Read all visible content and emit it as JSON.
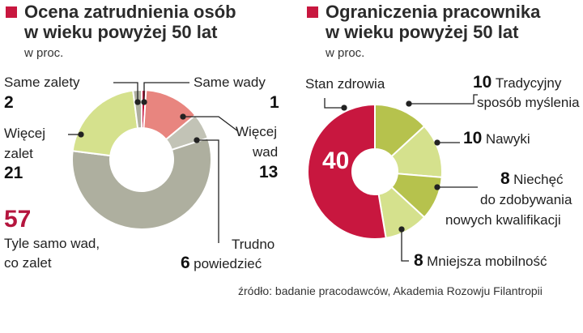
{
  "accent_color": "#c8173f",
  "source": "źródło: badanie pracodawców, Akademia Rozowju Filantropii",
  "chart_data": [
    {
      "type": "pie",
      "title_line1": "Ocena zatrudnienia osób",
      "title_line2": "w wieku powyżej 50 lat",
      "unit": "w proc.",
      "slices": [
        {
          "label": "Same wady",
          "value": 1,
          "color": "#c8173f"
        },
        {
          "label_l1": "Więcej",
          "label_l2": "wad",
          "value": 13,
          "color": "#e8857f"
        },
        {
          "label_l1": "Trudno",
          "label_l2": "powiedzieć",
          "value": 6,
          "color": "#c2c3b6"
        },
        {
          "label_l1": "Tyle samo wad,",
          "label_l2": "co zalet",
          "value": 57,
          "color": "#aeaf9f"
        },
        {
          "label_l1": "Więcej",
          "label_l2": "zalet",
          "value": 21,
          "color": "#d5e18d"
        },
        {
          "label": "Same zalety",
          "value": 2,
          "color": "#aeaf9f"
        }
      ]
    },
    {
      "type": "pie",
      "title_line1": "Ograniczenia pracownika",
      "title_line2": "w wieku powyżej 50 lat",
      "unit": "w proc.",
      "slices": [
        {
          "label_l1": "Tradycyjny",
          "label_l2": "sposób myślenia",
          "value": 10,
          "color": "#b6c24d"
        },
        {
          "label": "Nawyki",
          "value": 10,
          "color": "#d5e18d"
        },
        {
          "label_l1": "Niechęć",
          "label_l2": "do zdobywania",
          "label_l3": "nowych kwalifikacji",
          "value": 8,
          "color": "#b6c24d"
        },
        {
          "label": "Mniejsza mobilność",
          "value": 8,
          "color": "#d5e18d"
        },
        {
          "label": "Stan zdrowia",
          "value": 40,
          "color": "#c8173f"
        }
      ]
    }
  ]
}
